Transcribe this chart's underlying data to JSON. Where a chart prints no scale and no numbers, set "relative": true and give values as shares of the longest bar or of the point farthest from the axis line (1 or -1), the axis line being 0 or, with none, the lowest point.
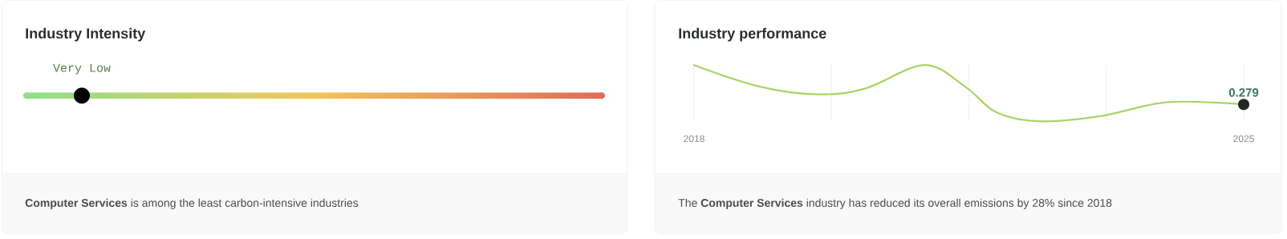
{
  "chart_data": [
    {
      "type": "other",
      "title": "Industry Intensity",
      "annotations": [
        "Very Low",
        "**Computer Services** is among the least carbon-intensive industries"
      ]
    },
    {
      "type": "line",
      "title": "Industry performance",
      "relative": true,
      "color": "#a9d565",
      "x": [
        2018,
        2018.83,
        2019.57,
        2020.17,
        2020.93,
        2021.45,
        2021.85,
        2022.39,
        2023.17,
        2024.03,
        2025
      ],
      "values": [
        1.0,
        0.62,
        0.48,
        0.58,
        1.0,
        0.62,
        0.16,
        0,
        0.09,
        0.34,
        0.3
      ],
      "xlim": [
        2018,
        2025
      ],
      "xticks": [
        2018,
        {
          "value": 2019.75,
          "label": null
        },
        {
          "value": 2021.5,
          "label": null
        },
        {
          "value": 2023.25,
          "label": null
        },
        2025
      ],
      "grid": "x",
      "annotations": [
        {
          "text": "0.279",
          "x": 2025,
          "y": 0.3
        },
        "The **Computer Services** industry has reduced its overall emissions by 28% since 2018"
      ]
    }
  ]
}
